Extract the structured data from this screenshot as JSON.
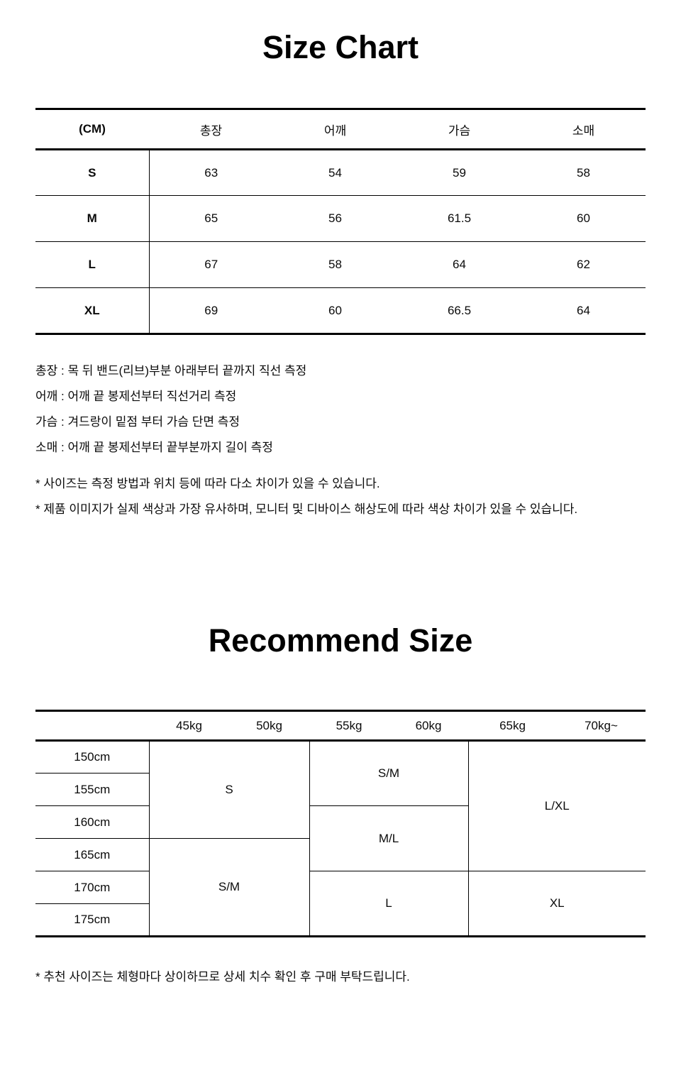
{
  "titles": {
    "size_chart": "Size Chart",
    "recommend": "Recommend Size"
  },
  "size_table": {
    "unit_label": "(CM)",
    "columns": [
      "총장",
      "어깨",
      "가슴",
      "소매"
    ],
    "rows": [
      {
        "size": "S",
        "values": [
          "63",
          "54",
          "59",
          "58"
        ]
      },
      {
        "size": "M",
        "values": [
          "65",
          "56",
          "61.5",
          "60"
        ]
      },
      {
        "size": "L",
        "values": [
          "67",
          "58",
          "64",
          "62"
        ]
      },
      {
        "size": "XL",
        "values": [
          "69",
          "60",
          "66.5",
          "64"
        ]
      }
    ]
  },
  "measure_notes": [
    "총장 : 목 뒤 밴드(리브)부분 아래부터 끝까지 직선 측정",
    "어깨 : 어깨 끝 봉제선부터 직선거리 측정",
    "가슴 : 겨드랑이 밑점 부터 가슴 단면 측정",
    "소매 : 어깨 끝 봉제선부터 끝부분까지 길이 측정"
  ],
  "disclaimers": [
    "* 사이즈는 측정 방법과 위치 등에 따라 다소 차이가 있을 수 있습니다.",
    "* 제품 이미지가 실제 색상과 가장 유사하며, 모니터 및 디바이스 해상도에 따라 색상 차이가 있을 수 있습니다."
  ],
  "recommend_table": {
    "weights": [
      "45kg",
      "50kg",
      "55kg",
      "60kg",
      "65kg",
      "70kg~"
    ],
    "heights": [
      "150cm",
      "155cm",
      "160cm",
      "165cm",
      "170cm",
      "175cm"
    ],
    "cells": {
      "w45_50": {
        "h150_160": "S",
        "h165_175": "S/M"
      },
      "w55_60": {
        "h150_155": "S/M",
        "h160_165": "M/L",
        "h170_175": "L"
      },
      "w65_70": {
        "h150_165": "L/XL",
        "h170_175": "XL"
      }
    }
  },
  "recommend_note": "* 추천 사이즈는 체형마다 상이하므로 상세 치수 확인 후 구매 부탁드립니다."
}
